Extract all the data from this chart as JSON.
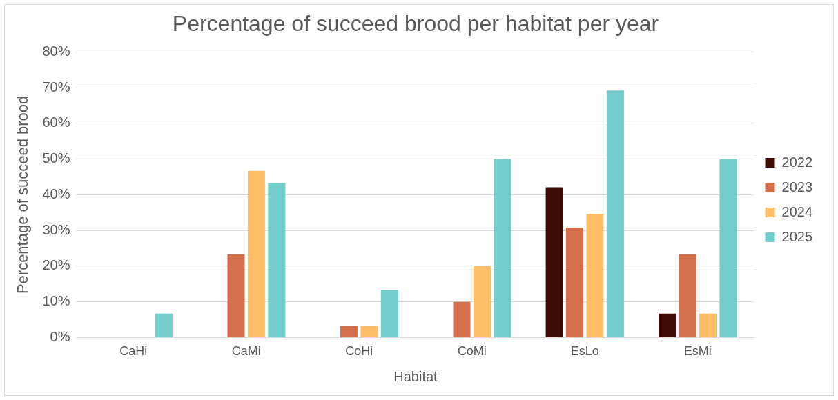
{
  "chart_data": {
    "type": "bar",
    "title": "Percentage of succeed brood per habitat per year",
    "xlabel": "Habitat",
    "ylabel": "Percentage of succeed brood",
    "categories": [
      "CaHi",
      "CaMi",
      "CoHi",
      "CoMi",
      "EsLo",
      "EsMi"
    ],
    "series": [
      {
        "name": "2022",
        "color": "#3f0c06",
        "values": [
          0,
          0,
          0,
          0,
          42.1,
          6.7
        ]
      },
      {
        "name": "2023",
        "color": "#d46f4d",
        "values": [
          0,
          23.3,
          3.3,
          10,
          30.8,
          23.3
        ]
      },
      {
        "name": "2024",
        "color": "#ffbe67",
        "values": [
          0,
          46.7,
          3.3,
          20,
          34.6,
          6.7
        ]
      },
      {
        "name": "2025",
        "color": "#74cdcd",
        "values": [
          6.7,
          43.3,
          13.3,
          50,
          69.2,
          50
        ]
      }
    ],
    "ylim": [
      0,
      80
    ],
    "yticks": [
      {
        "value": 0,
        "label": "0%"
      },
      {
        "value": 10,
        "label": "10%"
      },
      {
        "value": 20,
        "label": "20%"
      },
      {
        "value": 30,
        "label": "30%"
      },
      {
        "value": 40,
        "label": "40%"
      },
      {
        "value": 50,
        "label": "50%"
      },
      {
        "value": 60,
        "label": "60%"
      },
      {
        "value": 70,
        "label": "70%"
      },
      {
        "value": 80,
        "label": "80%"
      }
    ],
    "grid": "y",
    "legend": "right"
  }
}
